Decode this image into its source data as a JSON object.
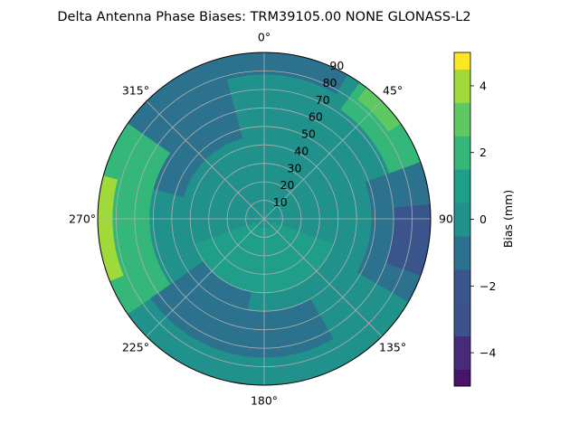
{
  "chart_data": {
    "type": "polar-contour",
    "title": "Delta Antenna Phase Biases: TRM39105.00     NONE GLONASS-L2",
    "angle_ticks": [
      {
        "deg": 0,
        "label": "0°"
      },
      {
        "deg": 45,
        "label": "45°"
      },
      {
        "deg": 90,
        "label": "90"
      },
      {
        "deg": 135,
        "label": "135°"
      },
      {
        "deg": 180,
        "label": "180°"
      },
      {
        "deg": 225,
        "label": "225°"
      },
      {
        "deg": 270,
        "label": "270°"
      },
      {
        "deg": 315,
        "label": "315°"
      }
    ],
    "radial_ticks": [
      10,
      20,
      30,
      40,
      50,
      60,
      70,
      80,
      90
    ],
    "rlim": [
      0,
      90
    ],
    "grid": true,
    "colorbar": {
      "label": "Bias (mm)",
      "vlim": [
        -5,
        5
      ],
      "ticks": [
        -4,
        -2,
        0,
        2,
        4
      ],
      "levels": [
        {
          "from": -5.0,
          "to": -4.5,
          "color": "#481467"
        },
        {
          "from": -4.5,
          "to": -3.5,
          "color": "#472a7a"
        },
        {
          "from": -3.5,
          "to": -2.5,
          "color": "#3b528b"
        },
        {
          "from": -2.5,
          "to": -1.5,
          "color": "#3a548c"
        },
        {
          "from": -1.5,
          "to": -0.5,
          "color": "#2c728e"
        },
        {
          "from": -0.5,
          "to": 0.5,
          "color": "#21918c"
        },
        {
          "from": 0.5,
          "to": 1.5,
          "color": "#1f9e89"
        },
        {
          "from": 1.5,
          "to": 2.5,
          "color": "#35b779"
        },
        {
          "from": 2.5,
          "to": 3.5,
          "color": "#5ec962"
        },
        {
          "from": 3.5,
          "to": 4.5,
          "color": "#a0da39"
        },
        {
          "from": 4.5,
          "to": 5.0,
          "color": "#fde725"
        }
      ]
    },
    "regions": [
      {
        "name": "north-band",
        "value": -1.0,
        "az": [
          330,
          390
        ],
        "r": [
          78,
          90
        ]
      },
      {
        "name": "nw-low",
        "value": -2.0,
        "az": [
          300,
          330
        ],
        "r": [
          62,
          90
        ]
      },
      {
        "name": "nw-ring",
        "value": -1.0,
        "az": [
          285,
          345
        ],
        "r": [
          45,
          90
        ]
      },
      {
        "name": "ne-high",
        "value": 2.0,
        "az": [
          35,
          75
        ],
        "r": [
          72,
          90
        ]
      },
      {
        "name": "ne-peak",
        "value": 3.0,
        "az": [
          38,
          55
        ],
        "r": [
          82,
          90
        ]
      },
      {
        "name": "east-low",
        "value": -1.0,
        "az": [
          70,
          120
        ],
        "r": [
          58,
          90
        ]
      },
      {
        "name": "east-deep",
        "value": -2.0,
        "az": [
          85,
          110
        ],
        "r": [
          70,
          90
        ]
      },
      {
        "name": "west-high",
        "value": 2.0,
        "az": [
          235,
          305
        ],
        "r": [
          62,
          90
        ]
      },
      {
        "name": "west-peak",
        "value": 4.0,
        "az": [
          248,
          285
        ],
        "r": [
          82,
          90
        ]
      },
      {
        "name": "sw-low",
        "value": -1.0,
        "az": [
          190,
          235
        ],
        "r": [
          35,
          75
        ]
      },
      {
        "name": "south-low",
        "value": -1.0,
        "az": [
          150,
          195
        ],
        "r": [
          50,
          75
        ]
      },
      {
        "name": "center-high",
        "value": 1.0,
        "az": [
          110,
          250
        ],
        "r": [
          5,
          40
        ]
      }
    ],
    "background_value": 0.5
  }
}
